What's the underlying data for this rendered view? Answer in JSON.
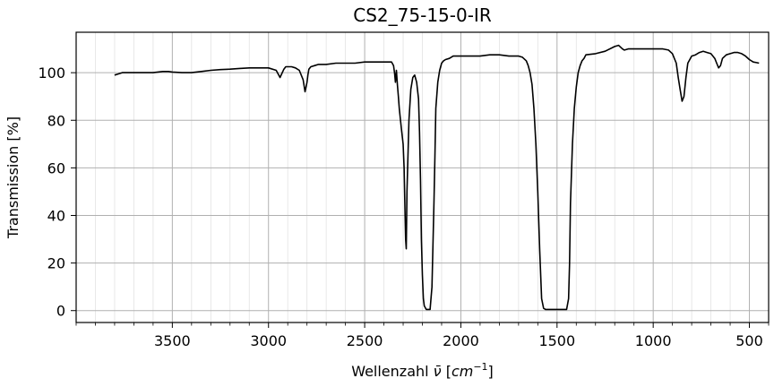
{
  "chart_data": {
    "type": "line",
    "title": "CS2_75-15-0-IR",
    "xlabel": {
      "prefix": "Wellenzahl ",
      "nu": "ν̄",
      "open": " [",
      "unit": "cm",
      "exp": "−1",
      "close": "]"
    },
    "ylabel": "Transmission [%]",
    "xlim": [
      4000,
      400
    ],
    "ylim": [
      -5,
      117
    ],
    "x_reversed": true,
    "grid": true,
    "x_major_ticks": [
      3500,
      3000,
      2500,
      2000,
      1500,
      1000,
      500
    ],
    "x_tick_labels": [
      "3500",
      "3000",
      "2500",
      "2000",
      "1500",
      "1000",
      "500"
    ],
    "x_minor_step": 100,
    "y_major_ticks": [
      0,
      20,
      40,
      60,
      80,
      100
    ],
    "y_tick_labels": [
      "0",
      "20",
      "40",
      "60",
      "80",
      "100"
    ],
    "series": [
      {
        "color": "#000000",
        "x": [
          3800,
          3780,
          3760,
          3700,
          3650,
          3600,
          3550,
          3520,
          3500,
          3450,
          3400,
          3350,
          3300,
          3250,
          3200,
          3150,
          3100,
          3050,
          3000,
          2960,
          2940,
          2920,
          2910,
          2900,
          2880,
          2860,
          2840,
          2820,
          2810,
          2800,
          2795,
          2790,
          2780,
          2760,
          2740,
          2700,
          2650,
          2600,
          2550,
          2500,
          2450,
          2400,
          2370,
          2360,
          2350,
          2345,
          2340,
          2335,
          2330,
          2325,
          2320,
          2310,
          2300,
          2295,
          2290,
          2287,
          2284,
          2280,
          2270,
          2260,
          2250,
          2240,
          2230,
          2220,
          2215,
          2210,
          2205,
          2200,
          2195,
          2190,
          2180,
          2170,
          2160,
          2150,
          2140,
          2135,
          2130,
          2120,
          2110,
          2100,
          2090,
          2080,
          2060,
          2040,
          2020,
          2000,
          1950,
          1900,
          1850,
          1800,
          1750,
          1700,
          1680,
          1660,
          1650,
          1640,
          1630,
          1620,
          1610,
          1600,
          1590,
          1580,
          1570,
          1560,
          1550,
          1500,
          1450,
          1440,
          1435,
          1430,
          1420,
          1410,
          1400,
          1390,
          1380,
          1370,
          1360,
          1350,
          1300,
          1250,
          1200,
          1180,
          1160,
          1150,
          1130,
          1100,
          1050,
          1000,
          950,
          920,
          900,
          880,
          870,
          860,
          850,
          840,
          830,
          820,
          800,
          780,
          760,
          740,
          720,
          700,
          680,
          670,
          660,
          650,
          640,
          620,
          600,
          580,
          560,
          540,
          520,
          500,
          480,
          460,
          450
        ],
        "y": [
          99,
          99.5,
          100,
          100,
          100,
          100,
          100.5,
          100.5,
          100.3,
          100,
          100,
          100.5,
          101,
          101.3,
          101.5,
          101.8,
          102,
          102,
          102,
          101,
          98,
          101.5,
          102.5,
          102.5,
          102.5,
          102,
          101,
          97,
          92,
          96,
          99,
          101.5,
          102.5,
          103,
          103.5,
          103.5,
          104,
          104,
          104,
          104.5,
          104.5,
          104.5,
          104.5,
          104.5,
          103,
          100,
          96,
          101,
          95,
          90,
          85,
          77,
          70,
          60,
          40,
          30,
          26,
          50,
          80,
          93,
          98,
          99,
          96,
          89,
          75,
          55,
          30,
          15,
          5,
          2,
          0.5,
          0.5,
          0.5,
          10,
          45,
          65,
          85,
          96,
          101,
          104,
          105,
          105.5,
          106,
          107,
          107,
          107,
          107,
          107,
          107.5,
          107.5,
          107,
          107,
          106.5,
          105,
          103,
          100,
          95,
          85,
          70,
          50,
          25,
          5,
          1,
          0.5,
          0.5,
          0.5,
          0.5,
          5,
          20,
          45,
          70,
          85,
          94,
          100,
          103,
          105,
          106,
          107.5,
          108,
          109,
          111,
          111.5,
          110,
          109.5,
          110,
          110,
          110,
          110,
          110,
          109.5,
          108,
          104,
          98,
          93,
          88,
          90,
          98,
          104,
          107,
          107.5,
          108.5,
          109,
          108.5,
          108,
          106,
          104,
          102,
          103,
          106,
          107.5,
          108,
          108.5,
          108.5,
          108,
          107,
          105.5,
          104.5,
          104.2,
          104
        ]
      }
    ]
  }
}
